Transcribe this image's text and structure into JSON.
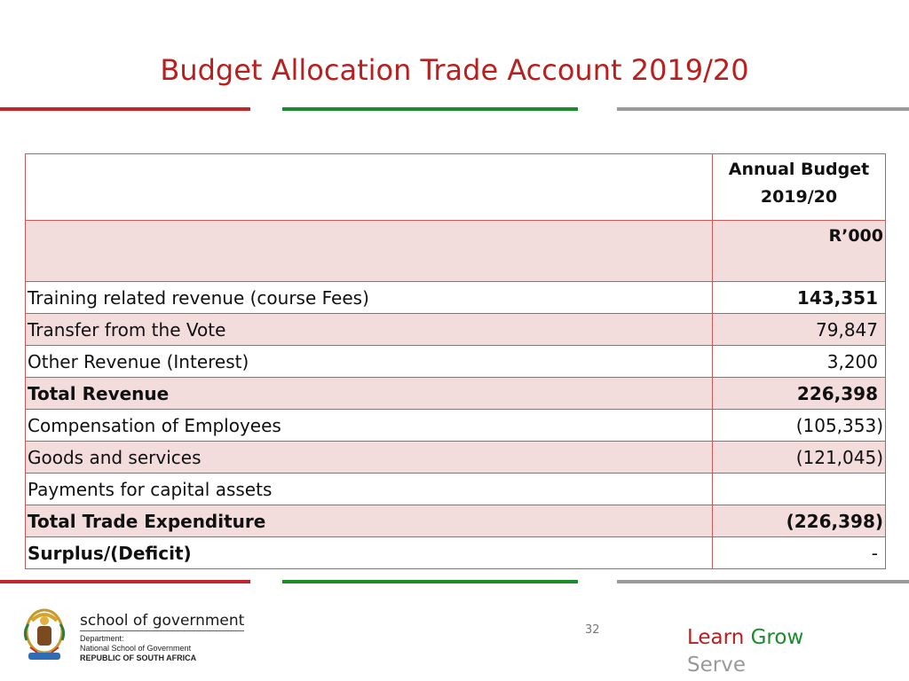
{
  "title": "Budget Allocation Trade Account 2019/20",
  "table": {
    "header": {
      "col2_line1": "Annual Budget",
      "col2_line2": "2019/20"
    },
    "unit": "R’000",
    "rows": [
      {
        "label": "Training related revenue (course Fees)",
        "value": "143,351",
        "bold_value": true,
        "bold_label": false,
        "shade": false
      },
      {
        "label": "Transfer from the Vote",
        "value": "79,847",
        "bold_value": false,
        "bold_label": false,
        "shade": true
      },
      {
        "label": "Other Revenue (Interest)",
        "value": "3,200",
        "bold_value": false,
        "bold_label": false,
        "shade": false
      },
      {
        "label": "Total Revenue",
        "value": "226,398",
        "bold_value": true,
        "bold_label": true,
        "shade": true
      },
      {
        "label": "Compensation of Employees",
        "value": "(105,353)",
        "bold_value": false,
        "bold_label": false,
        "shade": false
      },
      {
        "label": "Goods and services",
        "value": "(121,045)",
        "bold_value": false,
        "bold_label": false,
        "shade": true
      },
      {
        "label": "Payments for capital assets",
        "value": "",
        "bold_value": false,
        "bold_label": false,
        "shade": false
      },
      {
        "label": "Total Trade Expenditure",
        "value": "(226,398)",
        "bold_value": true,
        "bold_label": true,
        "shade": true
      },
      {
        "label": "Surplus/(Deficit)",
        "value": "-",
        "bold_value": false,
        "bold_label": true,
        "shade": false
      }
    ]
  },
  "footer": {
    "logo_title": "school of government",
    "logo_line1": "Department:",
    "logo_line2": "National School of Government",
    "logo_line3": "REPUBLIC OF SOUTH AFRICA",
    "page_number": "32",
    "slogan_learn": "Learn",
    "slogan_grow": "Grow",
    "slogan_serve": "Serve"
  },
  "colors": {
    "accent_red": "#b8201f",
    "accent_green": "#1b8c2c",
    "grey": "#9a9a9a",
    "row_shade": "#f3dcdc"
  },
  "icons": {
    "logo": "coat-of-arms-icon"
  }
}
